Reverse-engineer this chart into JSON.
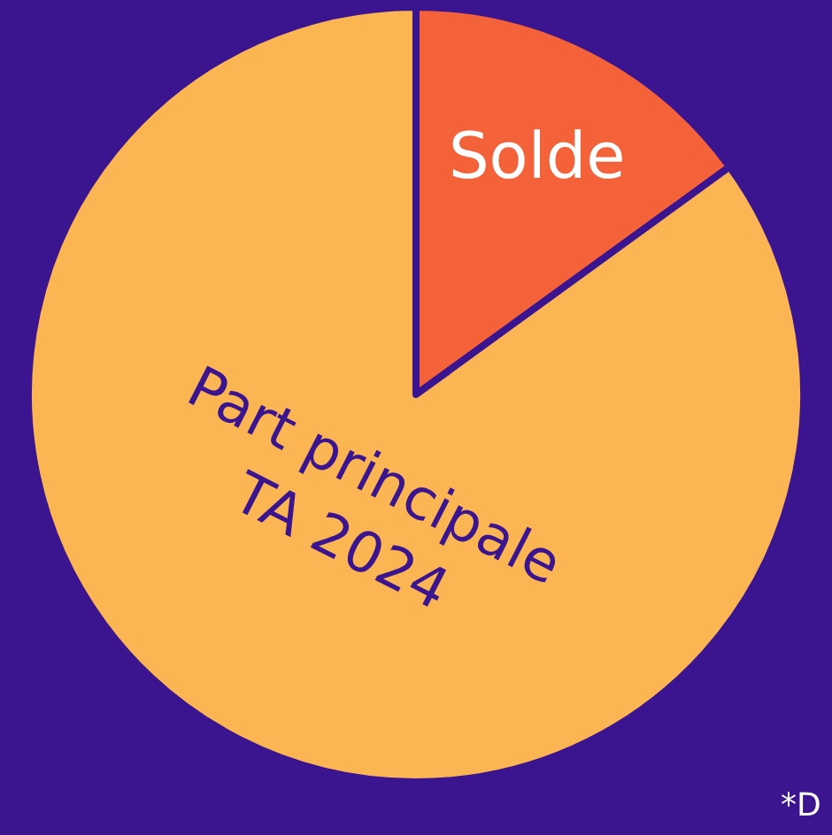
{
  "chart_data": {
    "type": "pie",
    "categories": [
      "Solde",
      "Part principale\nTA 2024"
    ],
    "values": [
      15,
      85
    ],
    "colors": [
      "#f4623a",
      "#fbb552"
    ],
    "legend": false,
    "annotations": [
      "*D"
    ]
  }
}
